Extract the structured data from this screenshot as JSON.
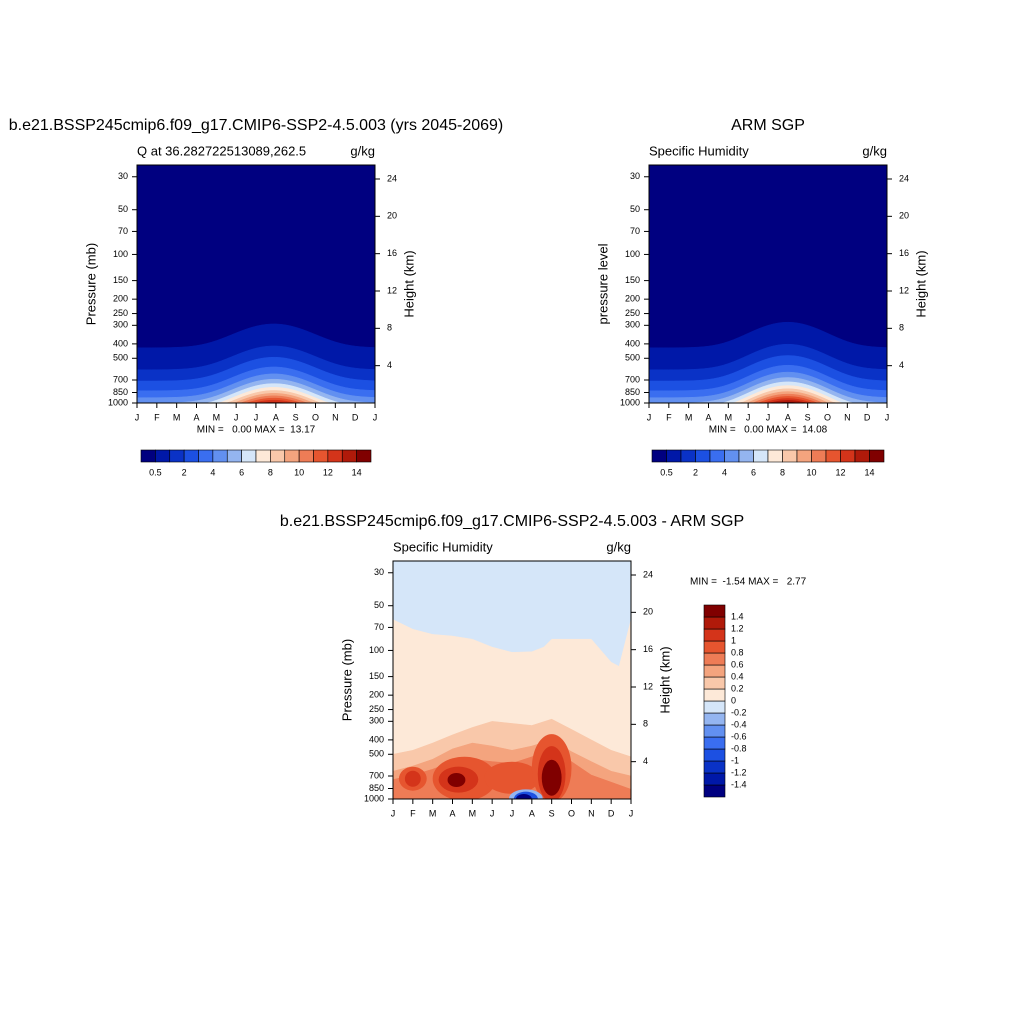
{
  "chart_data": [
    {
      "type": "contour",
      "title": "b.e21.BSSP245cmip6.f09_g17.CMIP6-SSP2-4.5.003 (yrs 2045-2069)",
      "left_string": "Q at 36.282722513089,262.5",
      "right_string": "g/kg",
      "ylabel": "Pressure (mb)",
      "y2label": "Height (km)",
      "categories": [
        "J",
        "F",
        "M",
        "A",
        "M",
        "J",
        "J",
        "A",
        "S",
        "O",
        "N",
        "D",
        "J"
      ],
      "log_y": true,
      "ylim": [
        1000,
        25
      ],
      "yticks": [
        30,
        50,
        70,
        100,
        150,
        200,
        250,
        300,
        400,
        500,
        700,
        850,
        1000
      ],
      "y2lim": [
        0,
        25.5
      ],
      "y2ticks": [
        4,
        8,
        12,
        16,
        20,
        24
      ],
      "stats": "MIN =   0.00 MAX =  13.17",
      "colorbar": {
        "orientation": "horizontal",
        "labels": [
          0.5,
          2,
          4,
          6,
          8,
          10,
          12,
          14
        ],
        "colors": [
          "#000080",
          "#0018a8",
          "#0a32c6",
          "#1c50e2",
          "#3a6ef0",
          "#6290f0",
          "#94b5f0",
          "#d5e6f9",
          "#fde9d8",
          "#f9c8aa",
          "#f4a47e",
          "#ee7c56",
          "#e6552f",
          "#d4341a",
          "#b01a0a",
          "#800000"
        ]
      }
    },
    {
      "type": "contour",
      "title": "ARM SGP",
      "left_string": "Specific Humidity",
      "right_string": "g/kg",
      "ylabel": "pressure level",
      "y2label": "Height (km)",
      "categories": [
        "J",
        "F",
        "M",
        "A",
        "M",
        "J",
        "J",
        "A",
        "S",
        "O",
        "N",
        "D",
        "J"
      ],
      "log_y": true,
      "ylim": [
        1000,
        25
      ],
      "yticks": [
        30,
        50,
        70,
        100,
        150,
        200,
        250,
        300,
        400,
        500,
        700,
        850,
        1000
      ],
      "y2lim": [
        0,
        25.5
      ],
      "y2ticks": [
        4,
        8,
        12,
        16,
        20,
        24
      ],
      "stats": "MIN =   0.00 MAX =  14.08",
      "colorbar": {
        "orientation": "horizontal",
        "labels": [
          0.5,
          2,
          4,
          6,
          8,
          10,
          12,
          14
        ],
        "colors": [
          "#000080",
          "#0018a8",
          "#0a32c6",
          "#1c50e2",
          "#3a6ef0",
          "#6290f0",
          "#94b5f0",
          "#d5e6f9",
          "#fde9d8",
          "#f9c8aa",
          "#f4a47e",
          "#ee7c56",
          "#e6552f",
          "#d4341a",
          "#b01a0a",
          "#800000"
        ]
      }
    },
    {
      "type": "contour-diff",
      "title": "b.e21.BSSP245cmip6.f09_g17.CMIP6-SSP2-4.5.003 - ARM SGP",
      "left_string": "Specific Humidity",
      "right_string": "g/kg",
      "ylabel": "Pressure (mb)",
      "y2label": "Height (km)",
      "categories": [
        "J",
        "F",
        "M",
        "A",
        "M",
        "J",
        "J",
        "A",
        "S",
        "O",
        "N",
        "D",
        "J"
      ],
      "log_y": true,
      "ylim": [
        1000,
        25
      ],
      "yticks": [
        30,
        50,
        70,
        100,
        150,
        200,
        250,
        300,
        400,
        500,
        700,
        850,
        1000
      ],
      "y2lim": [
        0,
        25.5
      ],
      "y2ticks": [
        4,
        8,
        12,
        16,
        20,
        24
      ],
      "stats": "MIN =  -1.54 MAX =   2.77",
      "colorbar": {
        "orientation": "vertical",
        "labels": [
          -1.4,
          -1.2,
          -1,
          -0.8,
          -0.6,
          -0.4,
          -0.2,
          0,
          0.2,
          0.4,
          0.6,
          0.8,
          1,
          1.2,
          1.4
        ],
        "colors": [
          "#000080",
          "#0018a8",
          "#0a32c6",
          "#1c50e2",
          "#3a6ef0",
          "#6290f0",
          "#94b5f0",
          "#d5e6f9",
          "#fde9d8",
          "#f9c8aa",
          "#f4a47e",
          "#ee7c56",
          "#e6552f",
          "#d4341a",
          "#b01a0a",
          "#800000"
        ]
      }
    }
  ]
}
